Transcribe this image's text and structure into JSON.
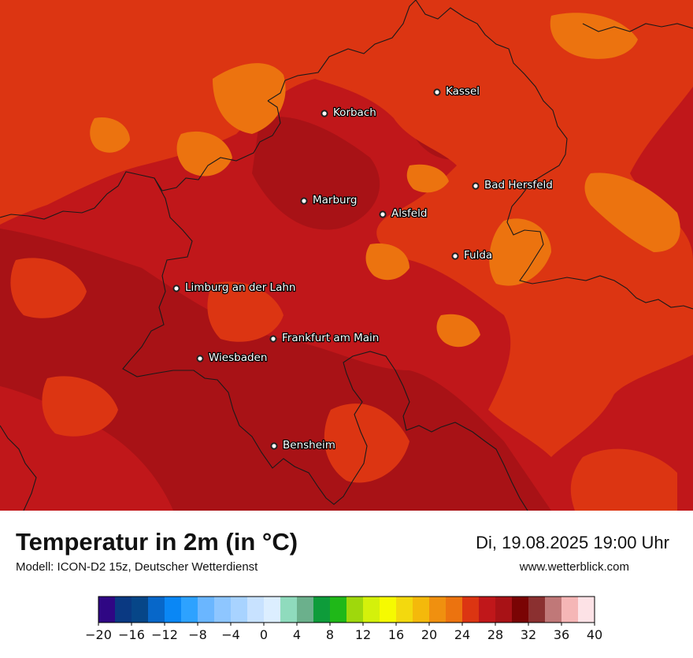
{
  "title": "Temperatur in 2m (in °C)",
  "subtitle": "Modell: ICON-D2 15z, Deutscher Wetterdienst",
  "datetime": "Di, 19.08.2025 19:00 Uhr",
  "website": "www.wetterblick.com",
  "colors": {
    "base": "#c0171a",
    "dark": "#a81216",
    "t24": "#dc3512",
    "t26": "#ec730f",
    "border": "#1a1a1a"
  },
  "cities": [
    {
      "name": "Kassel"
    },
    {
      "name": "Korbach"
    },
    {
      "name": "Bad Hersfeld"
    },
    {
      "name": "Marburg"
    },
    {
      "name": "Alsfeld"
    },
    {
      "name": "Fulda"
    },
    {
      "name": "Limburg an der Lahn"
    },
    {
      "name": "Frankfurt am Main"
    },
    {
      "name": "Wiesbaden"
    },
    {
      "name": "Bensheim"
    }
  ],
  "legend": {
    "ticks": [
      "−20",
      "−16",
      "−12",
      "−8",
      "−4",
      "0",
      "4",
      "8",
      "12",
      "16",
      "20",
      "24",
      "28",
      "32",
      "36",
      "40"
    ],
    "min": -20,
    "max": 40,
    "step": 2,
    "colors": [
      "#2f0784",
      "#0a3982",
      "#064688",
      "#0767c9",
      "#0a87f5",
      "#2da2ff",
      "#6ab6ff",
      "#8ec6ff",
      "#a8d3ff",
      "#c8e2ff",
      "#dceeff",
      "#8fdbbd",
      "#6bb08c",
      "#0e9c3a",
      "#1fb818",
      "#9fd80c",
      "#d4f10b",
      "#f6fa01",
      "#f3d90e",
      "#f4b90b",
      "#f0900f",
      "#ec730f",
      "#dc3512",
      "#c0171a",
      "#a81216",
      "#7a0404",
      "#8b3030",
      "#c07878",
      "#f5b6b6",
      "#fde2e6"
    ]
  }
}
